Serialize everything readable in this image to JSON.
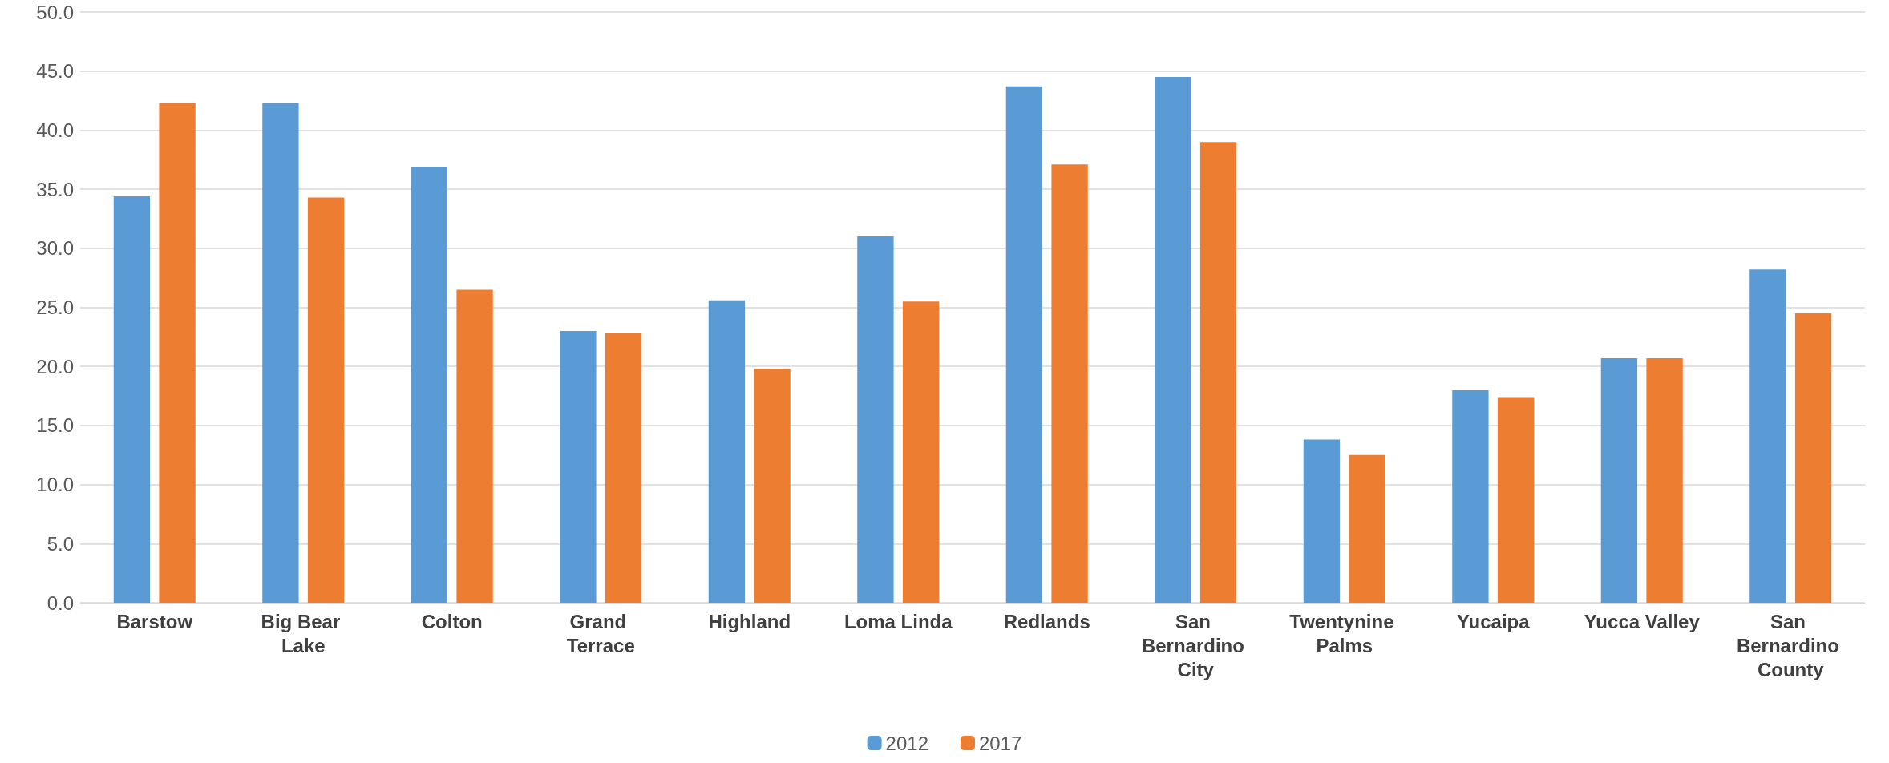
{
  "chart_data": {
    "type": "bar",
    "categories": [
      "Barstow",
      "Big Bear Lake",
      "Colton",
      "Grand Terrace",
      "Highland",
      "Loma Linda",
      "Redlands",
      "San Bernardino City",
      "Twentynine Palms",
      "Yucaipa",
      "Yucca Valley",
      "San Bernardino County"
    ],
    "series": [
      {
        "name": "2012",
        "color": "#5b9bd5",
        "values": [
          34.4,
          42.3,
          36.9,
          23.0,
          25.6,
          31.0,
          43.7,
          44.5,
          13.8,
          18.0,
          20.7,
          28.2
        ]
      },
      {
        "name": "2017",
        "color": "#ed7d31",
        "values": [
          42.3,
          34.3,
          26.5,
          22.8,
          19.8,
          25.5,
          37.1,
          39.0,
          12.5,
          17.4,
          20.7,
          24.5
        ]
      }
    ],
    "ylim": [
      0,
      50
    ],
    "yticks": [
      {
        "value": 0,
        "label": "0.0"
      },
      {
        "value": 5,
        "label": "5.0"
      },
      {
        "value": 10,
        "label": "10.0"
      },
      {
        "value": 15,
        "label": "15.0"
      },
      {
        "value": 20,
        "label": "20.0"
      },
      {
        "value": 25,
        "label": "25.0"
      },
      {
        "value": 30,
        "label": "30.0"
      },
      {
        "value": 35,
        "label": "35.0"
      },
      {
        "value": 40,
        "label": "40.0"
      },
      {
        "value": 45,
        "label": "45.0"
      },
      {
        "value": 50,
        "label": "50.0"
      }
    ],
    "grid": "y",
    "legend": "bottom"
  }
}
